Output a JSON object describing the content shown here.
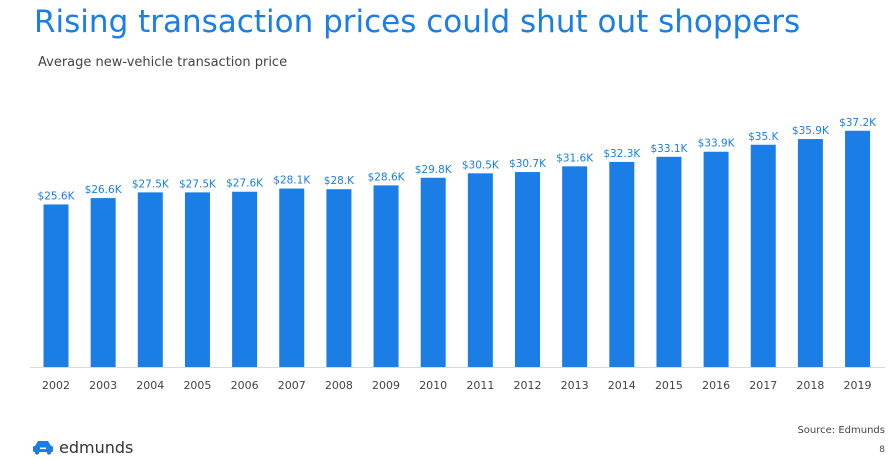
{
  "slide": {
    "title": "Rising transaction prices could shut out shoppers",
    "subtitle": "Average new-vehicle transaction price",
    "source": "Source: Edmunds",
    "page_number": "8",
    "brand": "edmunds"
  },
  "colors": {
    "title": "#1a7ee6",
    "bar": "#1a7ee6",
    "data_label": "#1a7ee6",
    "axis_text": "#444444"
  },
  "icons": {
    "brand_logo": "car-logo-icon"
  },
  "chart_data": {
    "type": "bar",
    "title": "",
    "xlabel": "",
    "ylabel": "",
    "grid": false,
    "ylim": [
      0,
      40
    ],
    "categories": [
      "2002",
      "2003",
      "2004",
      "2005",
      "2006",
      "2007",
      "2008",
      "2009",
      "2010",
      "2011",
      "2012",
      "2013",
      "2014",
      "2015",
      "2016",
      "2017",
      "2018",
      "2019"
    ],
    "values": [
      25.6,
      26.6,
      27.5,
      27.5,
      27.6,
      28.1,
      28.0,
      28.6,
      29.8,
      30.5,
      30.7,
      31.6,
      32.3,
      33.1,
      33.9,
      35.0,
      35.9,
      37.2
    ],
    "data_labels": [
      "$25.6K",
      "$26.6K",
      "$27.5K",
      "$27.5K",
      "$27.6K",
      "$28.1K",
      "$28.K",
      "$28.6K",
      "$29.8K",
      "$30.5K",
      "$30.7K",
      "$31.6K",
      "$32.3K",
      "$33.1K",
      "$33.9K",
      "$35.K",
      "$35.9K",
      "$37.2K"
    ]
  }
}
